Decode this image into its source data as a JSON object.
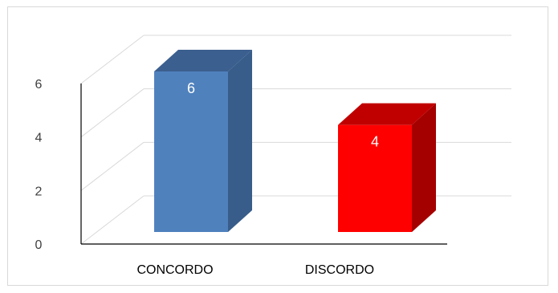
{
  "chart_data": {
    "type": "bar",
    "style": "3d-column",
    "categories": [
      "CONCORDO",
      "DISCORDO"
    ],
    "values": [
      6,
      4
    ],
    "data_labels": [
      "6",
      "4"
    ],
    "colors": [
      "#4f81bd",
      "#ff0000"
    ],
    "side_colors": [
      "#385d8a",
      "#a50000"
    ],
    "top_colors": [
      "#3b5f8f",
      "#c00000"
    ],
    "y_ticks": [
      "0",
      "2",
      "4",
      "6"
    ],
    "ylim": [
      0,
      6
    ],
    "title": "",
    "xlabel": "",
    "ylabel": "",
    "grid": true,
    "legend": "none"
  }
}
